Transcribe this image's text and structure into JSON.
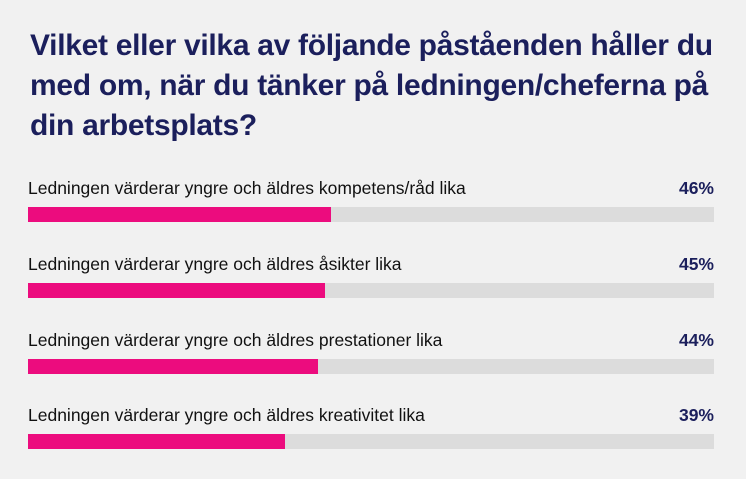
{
  "chart_data": {
    "type": "bar",
    "orientation": "horizontal",
    "title": "Vilket eller vilka av följande påståenden håller du med om, när du tänker på ledningen/cheferna på din arbetsplats?",
    "categories": [
      "Ledningen värderar yngre och äldres kompetens/råd lika",
      "Ledningen värderar yngre och äldres åsikter lika",
      "Ledningen värderar yngre och äldres prestationer lika",
      "Ledningen värderar yngre och äldres kreativitet lika"
    ],
    "values": [
      46,
      45,
      44,
      39
    ],
    "value_labels": [
      "46%",
      "45%",
      "44%",
      "39%"
    ],
    "bar_full_scale": 104,
    "colors": {
      "bar": "#ec0c7e",
      "track": "#dcdcdc",
      "title": "#1b1f5c",
      "background": "#f1f1f1"
    }
  }
}
